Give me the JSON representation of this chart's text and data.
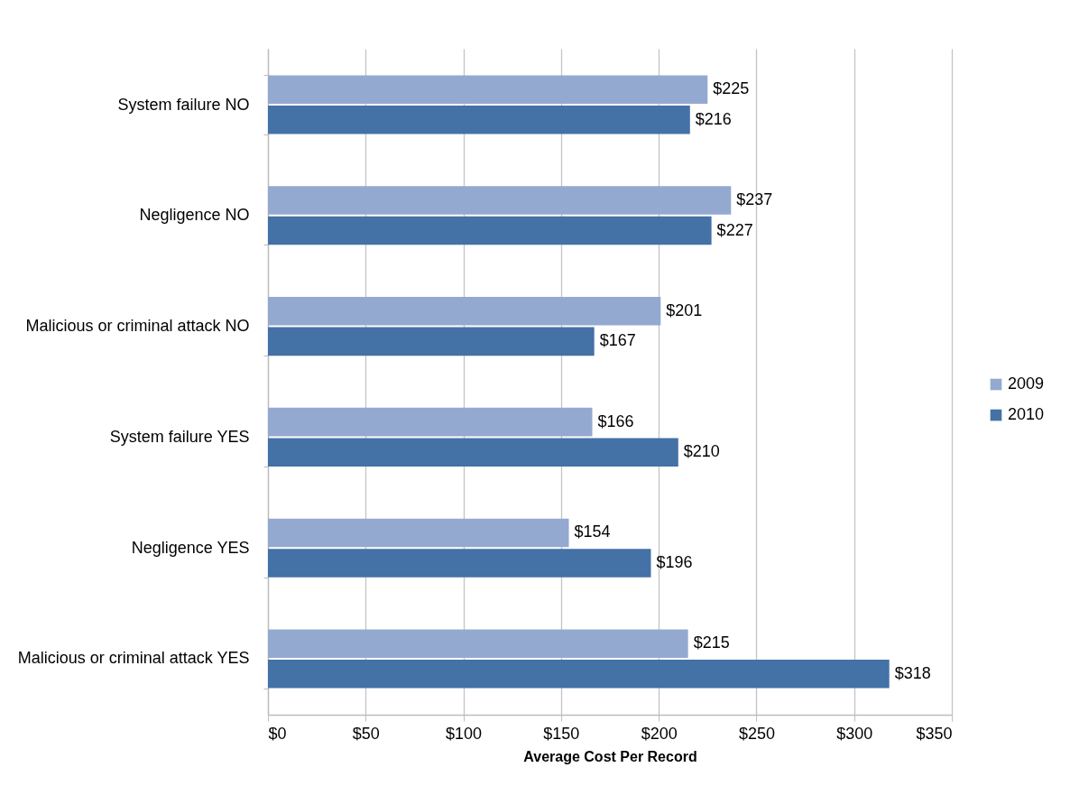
{
  "chart_data": {
    "type": "bar",
    "orientation": "horizontal",
    "xlabel": "Average Cost Per Record",
    "categories": [
      "System failure NO",
      "Negligence NO",
      "Malicious or criminal attack NO",
      "System failure YES",
      "Negligence YES",
      "Malicious or criminal attack YES"
    ],
    "series": [
      {
        "name": "2009",
        "color": "#94a9d0",
        "values": [
          225,
          237,
          201,
          166,
          154,
          215
        ],
        "value_labels": [
          "$225",
          "$237",
          "$201",
          "$166",
          "$154",
          "$215"
        ]
      },
      {
        "name": "2010",
        "color": "#4471a6",
        "values": [
          216,
          227,
          167,
          210,
          196,
          318
        ],
        "value_labels": [
          "$216",
          "$227",
          "$167",
          "$210",
          "$196",
          "$318"
        ]
      }
    ],
    "xlim": [
      0,
      350
    ],
    "xticks": [
      {
        "value": 0,
        "label": "$0"
      },
      {
        "value": 50,
        "label": "$50"
      },
      {
        "value": 100,
        "label": "$100"
      },
      {
        "value": 150,
        "label": "$150"
      },
      {
        "value": 200,
        "label": "$200"
      },
      {
        "value": 250,
        "label": "$250"
      },
      {
        "value": 300,
        "label": "$300"
      },
      {
        "value": 350,
        "label": "$350"
      }
    ],
    "grid": "x",
    "legend": "right"
  }
}
